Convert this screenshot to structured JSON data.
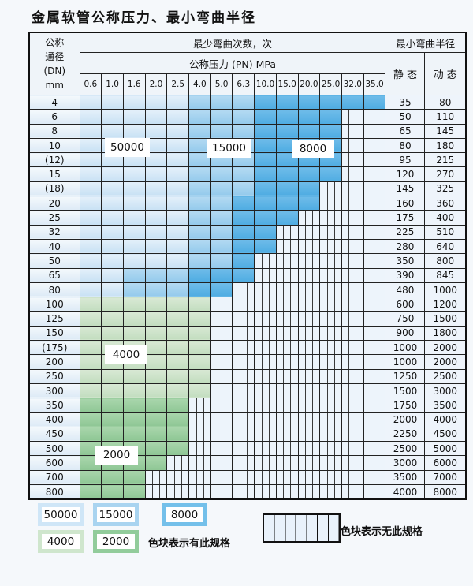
{
  "title": "金属软管公称压力、最小弯曲半径",
  "table": {
    "header": {
      "dn_lines": [
        "公称",
        "通径",
        "(DN)",
        "mm"
      ],
      "bend_cycles": "最少弯曲次数，次",
      "pressure": "公称压力 (PN) MPa",
      "min_bend_radius": "最小弯曲半径",
      "static": "静 态",
      "dynamic": "动 态",
      "pressure_columns": [
        "0.6",
        "1.0",
        "1.6",
        "2.0",
        "2.5",
        "4.0",
        "5.0",
        "6.3",
        "10.0",
        "15.0",
        "20.0",
        "25.0",
        "32.0",
        "35.0"
      ]
    },
    "cell_code_key": {
      "a": "50000",
      "b": "15000",
      "c": "8000",
      "d": "4000",
      "e": "2000",
      "x": "无此规格"
    },
    "rows": [
      {
        "dn": "4",
        "cells": "aaaaabbbcccccc",
        "static": "35",
        "dynamic": "80"
      },
      {
        "dn": "6",
        "cells": "aaaaabbbccccxx",
        "static": "50",
        "dynamic": "110"
      },
      {
        "dn": "8",
        "cells": "aaaaabbbccccxx",
        "static": "65",
        "dynamic": "145"
      },
      {
        "dn": "10",
        "cells": "aaaaabbbccccxx",
        "static": "80",
        "dynamic": "180"
      },
      {
        "dn": "(12)",
        "cells": "aaaaabbbccccxx",
        "static": "95",
        "dynamic": "215"
      },
      {
        "dn": "15",
        "cells": "aaaaabbbccccxx",
        "static": "120",
        "dynamic": "270"
      },
      {
        "dn": "(18)",
        "cells": "aaaaabbbcccxxx",
        "static": "145",
        "dynamic": "325"
      },
      {
        "dn": "20",
        "cells": "aaaaabbccccxxx",
        "static": "160",
        "dynamic": "360"
      },
      {
        "dn": "25",
        "cells": "aaaaabbcccxxxx",
        "static": "175",
        "dynamic": "400"
      },
      {
        "dn": "32",
        "cells": "aaaaabbccxxxxx",
        "static": "225",
        "dynamic": "510"
      },
      {
        "dn": "40",
        "cells": "aaaaabbccxxxxx",
        "static": "280",
        "dynamic": "640"
      },
      {
        "dn": "50",
        "cells": "aaaaabbcxxxxxx",
        "static": "350",
        "dynamic": "800"
      },
      {
        "dn": "65",
        "cells": "aabbbcccxxxxxx",
        "static": "390",
        "dynamic": "845"
      },
      {
        "dn": "80",
        "cells": "aabbbccxxxxxxx",
        "static": "480",
        "dynamic": "1000"
      },
      {
        "dn": "100",
        "cells": "ddddddxxxxxxxx",
        "static": "600",
        "dynamic": "1200"
      },
      {
        "dn": "125",
        "cells": "ddddddxxxxxxxx",
        "static": "750",
        "dynamic": "1500"
      },
      {
        "dn": "150",
        "cells": "ddddddxxxxxxxx",
        "static": "900",
        "dynamic": "1800"
      },
      {
        "dn": "(175)",
        "cells": "ddddddxxxxxxxx",
        "static": "1000",
        "dynamic": "2000"
      },
      {
        "dn": "200",
        "cells": "ddddddxxxxxxxx",
        "static": "1000",
        "dynamic": "2000"
      },
      {
        "dn": "250",
        "cells": "ddddddxxxxxxxx",
        "static": "1250",
        "dynamic": "2500"
      },
      {
        "dn": "300",
        "cells": "ddddddxxxxxxxx",
        "static": "1500",
        "dynamic": "3000"
      },
      {
        "dn": "350",
        "cells": "eeeeexxxxxxxxx",
        "static": "1750",
        "dynamic": "3500"
      },
      {
        "dn": "400",
        "cells": "eeeeexxxxxxxxx",
        "static": "2000",
        "dynamic": "4000"
      },
      {
        "dn": "450",
        "cells": "eeeeexxxxxxxxx",
        "static": "2250",
        "dynamic": "4500"
      },
      {
        "dn": "500",
        "cells": "eeeeexxxxxxxxx",
        "static": "2500",
        "dynamic": "5000"
      },
      {
        "dn": "600",
        "cells": "eeeexxxxxxxxxx",
        "static": "3000",
        "dynamic": "6000"
      },
      {
        "dn": "700",
        "cells": "eeexxxxxxxxxxx",
        "static": "3500",
        "dynamic": "7000"
      },
      {
        "dn": "800",
        "cells": "eeexxxxxxxxxxx",
        "static": "4000",
        "dynamic": "8000"
      }
    ]
  },
  "overlays": {
    "o50000": "50000",
    "o15000": "15000",
    "o8000": "8000",
    "o4000": "4000",
    "o2000": "2000"
  },
  "legend": {
    "items": [
      {
        "value": "50000",
        "colorkey": "c50000"
      },
      {
        "value": "15000",
        "colorkey": "c15000"
      },
      {
        "value": "8000",
        "colorkey": "c8000"
      },
      {
        "value": "4000",
        "colorkey": "c4000"
      },
      {
        "value": "2000",
        "colorkey": "c2000"
      }
    ],
    "has_spec": "色块表示有此规格",
    "no_spec": "色块表示无此规格"
  },
  "colors": {
    "c50000": "#cfe6f7",
    "c15000": "#a9d4f0",
    "c8000": "#74c0ea",
    "c4000": "#cfe6cd",
    "c2000": "#92cc9b",
    "hatch_bg": "#e9f2fb",
    "border": "#111111"
  }
}
